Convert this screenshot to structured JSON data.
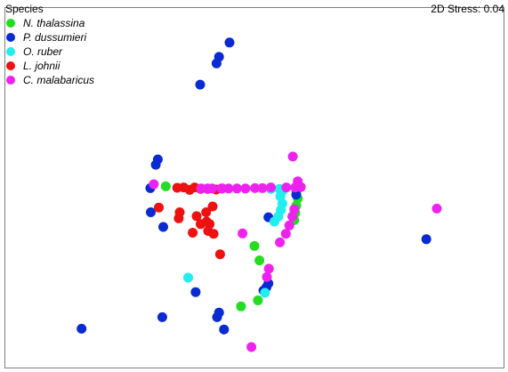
{
  "chart_data": {
    "type": "scatter",
    "title": "",
    "xlabel": "",
    "ylabel": "",
    "xlim": [
      0,
      100
    ],
    "ylim": [
      0,
      100
    ],
    "grid": false,
    "legend_position": "top-left",
    "legend_title": "Species",
    "annotation": "2D Stress: 0.04",
    "series": [
      {
        "name": "N. thalassina",
        "color": "#22dd22",
        "points": [
          [
            32.2,
            50.4
          ],
          [
            58.4,
            49.2
          ],
          [
            58.7,
            47.0
          ],
          [
            58.4,
            45.0
          ],
          [
            58.2,
            43.0
          ],
          [
            58.0,
            41.0
          ],
          [
            50.0,
            33.8
          ],
          [
            51.0,
            29.8
          ],
          [
            47.3,
            17.0
          ],
          [
            50.7,
            18.7
          ]
        ]
      },
      {
        "name": "P. dussumieri",
        "color": "#0a2ad2",
        "points": [
          [
            45.0,
            90.4
          ],
          [
            42.9,
            86.4
          ],
          [
            42.4,
            84.6
          ],
          [
            39.1,
            78.7
          ],
          [
            30.6,
            57.9
          ],
          [
            30.2,
            56.4
          ],
          [
            29.1,
            49.9
          ],
          [
            29.2,
            43.2
          ],
          [
            31.7,
            39.1
          ],
          [
            58.4,
            48.1
          ],
          [
            52.8,
            41.8
          ],
          [
            84.5,
            35.7
          ],
          [
            52.8,
            23.4
          ],
          [
            52.4,
            22.3
          ],
          [
            51.8,
            21.4
          ],
          [
            38.2,
            21.0
          ],
          [
            42.9,
            15.3
          ],
          [
            42.5,
            14.0
          ],
          [
            31.5,
            14.0
          ],
          [
            15.3,
            10.8
          ],
          [
            43.9,
            10.6
          ]
        ]
      },
      {
        "name": "O. ruber",
        "color": "#22eeee",
        "points": [
          [
            53.3,
            49.7
          ],
          [
            55.0,
            49.7
          ],
          [
            55.7,
            49.2
          ],
          [
            55.2,
            47.6
          ],
          [
            55.6,
            45.6
          ],
          [
            55.3,
            43.8
          ],
          [
            54.8,
            42.0
          ],
          [
            54.0,
            40.6
          ],
          [
            36.7,
            25.0
          ],
          [
            52.1,
            20.8
          ]
        ]
      },
      {
        "name": "L. johnii",
        "color": "#ee1111",
        "points": [
          [
            34.5,
            50.0
          ],
          [
            35.8,
            50.1
          ],
          [
            37.0,
            49.4
          ],
          [
            38.0,
            50.1
          ],
          [
            39.2,
            49.7
          ],
          [
            40.6,
            49.7
          ],
          [
            42.3,
            49.5
          ],
          [
            43.5,
            49.8
          ],
          [
            30.8,
            44.5
          ],
          [
            35.0,
            43.2
          ],
          [
            34.8,
            41.5
          ],
          [
            38.4,
            42.1
          ],
          [
            40.3,
            43.2
          ],
          [
            41.6,
            44.8
          ],
          [
            40.4,
            40.6
          ],
          [
            39.2,
            39.9
          ],
          [
            41.0,
            39.9
          ],
          [
            37.6,
            37.5
          ],
          [
            40.7,
            38.0
          ],
          [
            41.8,
            37.2
          ],
          [
            43.1,
            31.5
          ]
        ]
      },
      {
        "name": "C. malabaricus",
        "color": "#ee22ee",
        "points": [
          [
            57.7,
            58.7
          ],
          [
            29.8,
            51.0
          ],
          [
            39.3,
            49.8
          ],
          [
            40.6,
            49.8
          ],
          [
            41.5,
            49.8
          ],
          [
            43.4,
            49.8
          ],
          [
            44.8,
            49.8
          ],
          [
            46.5,
            49.8
          ],
          [
            48.2,
            49.8
          ],
          [
            50.1,
            49.9
          ],
          [
            51.6,
            49.9
          ],
          [
            53.3,
            50.1
          ],
          [
            56.4,
            50.1
          ],
          [
            58.2,
            50.1
          ],
          [
            59.3,
            50.2
          ],
          [
            58.7,
            51.8
          ],
          [
            58.0,
            44.0
          ],
          [
            57.6,
            42.0
          ],
          [
            57.0,
            39.5
          ],
          [
            56.3,
            37.2
          ],
          [
            55.1,
            34.8
          ],
          [
            47.6,
            37.3
          ],
          [
            52.9,
            27.5
          ],
          [
            52.5,
            25.2
          ],
          [
            86.6,
            44.2
          ],
          [
            49.4,
            5.7
          ]
        ]
      }
    ]
  }
}
